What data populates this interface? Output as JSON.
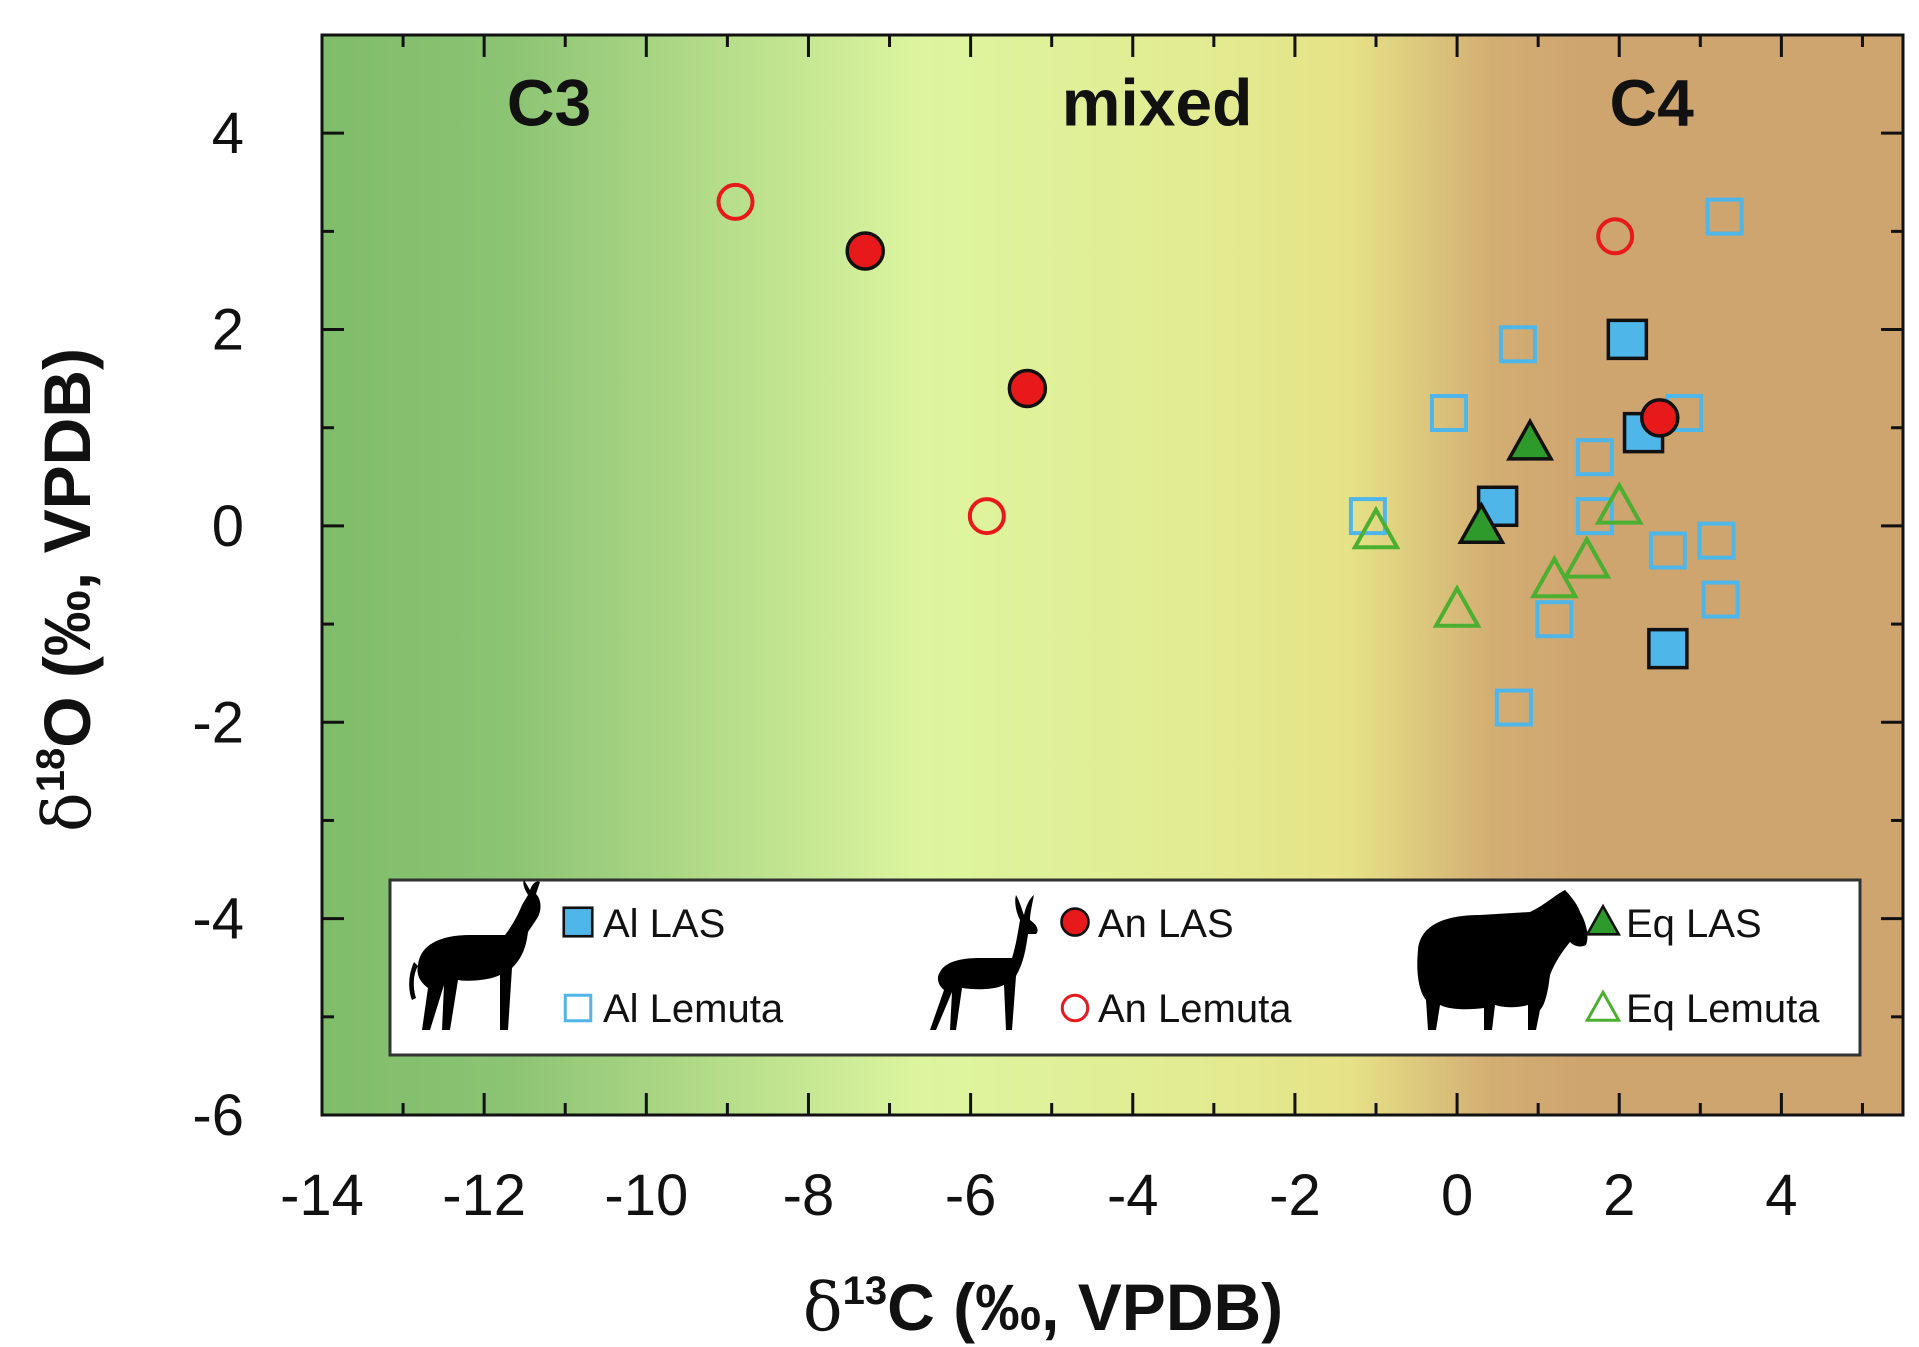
{
  "chart_data": {
    "type": "scatter",
    "xlabel": {
      "delta": "δ",
      "sup": "13",
      "rest": "C (‰, VPDB)"
    },
    "ylabel": {
      "delta": "δ",
      "sup": "18",
      "rest": "O (‰, VPDB)"
    },
    "xlim": [
      -14,
      5.5
    ],
    "ylim": [
      -6,
      5
    ],
    "xticks": [
      -14,
      -12,
      -10,
      -8,
      -6,
      -4,
      -2,
      0,
      2,
      4
    ],
    "yticks": [
      -6,
      -4,
      -2,
      0,
      2,
      4
    ],
    "regions": [
      {
        "label": "C3",
        "x": -11.2,
        "y": 4.2
      },
      {
        "label": "mixed",
        "x": -3.7,
        "y": 4.2
      },
      {
        "label": "C4",
        "x": 2.4,
        "y": 4.2
      }
    ],
    "background": {
      "green_dark": "#7fbd6a",
      "green_light": "#ddf59f",
      "yellow": "#e5e088",
      "brown": "#cea46f"
    },
    "colors": {
      "al": "#4fb6ea",
      "an": "#e8191b",
      "eq": "#2f9a2c",
      "eq_open": "#4caf31"
    },
    "series": [
      {
        "name": "Al LAS",
        "marker": "square-filled",
        "points": [
          [
            2.1,
            1.9
          ],
          [
            2.3,
            0.95
          ],
          [
            0.5,
            0.2
          ],
          [
            2.6,
            -1.25
          ]
        ]
      },
      {
        "name": "Al Lemuta",
        "marker": "square-open",
        "points": [
          [
            3.3,
            3.15
          ],
          [
            0.75,
            1.85
          ],
          [
            -0.1,
            1.15
          ],
          [
            2.8,
            1.15
          ],
          [
            1.7,
            0.7
          ],
          [
            -1.1,
            0.1
          ],
          [
            1.7,
            0.1
          ],
          [
            2.6,
            -0.25
          ],
          [
            3.2,
            -0.15
          ],
          [
            3.25,
            -0.75
          ],
          [
            1.2,
            -0.95
          ],
          [
            0.7,
            -1.85
          ]
        ]
      },
      {
        "name": "An LAS",
        "marker": "circle-filled",
        "points": [
          [
            -7.3,
            2.8
          ],
          [
            -5.3,
            1.4
          ],
          [
            2.5,
            1.1
          ]
        ]
      },
      {
        "name": "An Lemuta",
        "marker": "circle-open",
        "points": [
          [
            -8.9,
            3.3
          ],
          [
            1.95,
            2.95
          ],
          [
            -5.8,
            0.1
          ]
        ]
      },
      {
        "name": "Eq LAS",
        "marker": "triangle-filled",
        "points": [
          [
            0.9,
            0.85
          ],
          [
            0.3,
            0.0
          ]
        ]
      },
      {
        "name": "Eq Lemuta",
        "marker": "triangle-open",
        "points": [
          [
            -1.0,
            -0.05
          ],
          [
            2.0,
            0.2
          ],
          [
            1.6,
            -0.35
          ],
          [
            1.2,
            -0.55
          ],
          [
            0.0,
            -0.85
          ]
        ]
      }
    ],
    "legend": {
      "position": "lower-center",
      "items": [
        {
          "label": "Al LAS",
          "series": 0
        },
        {
          "label": "Al Lemuta",
          "series": 1
        },
        {
          "label": "An LAS",
          "series": 2
        },
        {
          "label": "An Lemuta",
          "series": 3
        },
        {
          "label": "Eq LAS",
          "series": 4
        },
        {
          "label": "Eq Lemuta",
          "series": 5
        }
      ],
      "icons": [
        "antelope-silhouette-icon",
        "gazelle-silhouette-icon",
        "zebra-silhouette-icon"
      ]
    },
    "grid": false
  }
}
